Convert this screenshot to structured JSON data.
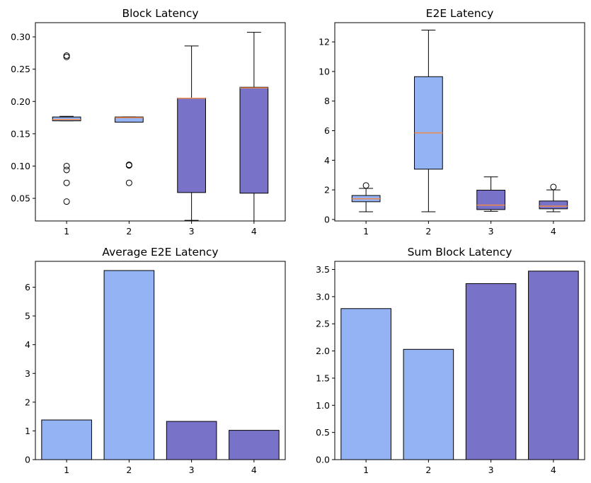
{
  "colors": {
    "light": "#94b3f4",
    "dark": "#7872c9",
    "median": "#f0894a",
    "edge": "#000000"
  },
  "chart_data": [
    {
      "type": "box",
      "title": "Block Latency",
      "categories": [
        "1",
        "2",
        "3",
        "4"
      ],
      "ylim": [
        0.015,
        0.322
      ],
      "yticks": [
        0.05,
        0.1,
        0.15,
        0.2,
        0.25,
        0.3
      ],
      "ytick_labels": [
        "0.05",
        "0.10",
        "0.15",
        "0.20",
        "0.25",
        "0.30"
      ],
      "boxes": [
        {
          "whislo": 0.17,
          "q1": 0.17,
          "med": 0.172,
          "q3": 0.176,
          "whishi": 0.177,
          "fliers": [
            0.271,
            0.269,
            0.1,
            0.094,
            0.074,
            0.045
          ],
          "color": "light"
        },
        {
          "whislo": 0.168,
          "q1": 0.168,
          "med": 0.175,
          "q3": 0.176,
          "whishi": 0.176,
          "fliers": [
            0.102,
            0.101,
            0.074
          ],
          "color": "light"
        },
        {
          "whislo": 0.016,
          "q1": 0.059,
          "med": 0.205,
          "q3": 0.205,
          "whishi": 0.286,
          "fliers": [],
          "color": "dark"
        },
        {
          "whislo": 0.015,
          "q1": 0.058,
          "med": 0.221,
          "q3": 0.222,
          "whishi": 0.307,
          "fliers": [],
          "color": "dark"
        }
      ]
    },
    {
      "type": "box",
      "title": "E2E Latency",
      "categories": [
        "1",
        "2",
        "3",
        "4"
      ],
      "ylim": [
        -0.1,
        13.3
      ],
      "yticks": [
        0,
        2,
        4,
        6,
        8,
        10,
        12
      ],
      "ytick_labels": [
        "0",
        "2",
        "4",
        "6",
        "8",
        "10",
        "12"
      ],
      "boxes": [
        {
          "whislo": 0.52,
          "q1": 1.2,
          "med": 1.4,
          "q3": 1.62,
          "whishi": 2.1,
          "fliers": [
            2.3
          ],
          "color": "light"
        },
        {
          "whislo": 0.52,
          "q1": 3.4,
          "med": 5.85,
          "q3": 9.65,
          "whishi": 12.8,
          "fliers": [],
          "color": "light"
        },
        {
          "whislo": 0.55,
          "q1": 0.67,
          "med": 0.97,
          "q3": 1.98,
          "whishi": 2.88,
          "fliers": [],
          "color": "dark"
        },
        {
          "whislo": 0.52,
          "q1": 0.72,
          "med": 0.9,
          "q3": 1.25,
          "whishi": 2.0,
          "fliers": [
            2.2
          ],
          "color": "dark"
        }
      ]
    },
    {
      "type": "bar",
      "title": "Average E2E Latency",
      "categories": [
        "1",
        "2",
        "3",
        "4"
      ],
      "values": [
        1.38,
        6.58,
        1.33,
        1.02
      ],
      "colors": [
        "light",
        "light",
        "dark",
        "dark"
      ],
      "ylim": [
        0,
        6.9
      ],
      "yticks": [
        0,
        1,
        2,
        3,
        4,
        5,
        6
      ],
      "ytick_labels": [
        "0",
        "1",
        "2",
        "3",
        "4",
        "5",
        "6"
      ]
    },
    {
      "type": "bar",
      "title": "Sum Block Latency",
      "categories": [
        "1",
        "2",
        "3",
        "4"
      ],
      "values": [
        2.78,
        2.03,
        3.24,
        3.47
      ],
      "colors": [
        "light",
        "light",
        "dark",
        "dark"
      ],
      "ylim": [
        0,
        3.65
      ],
      "yticks": [
        0.0,
        0.5,
        1.0,
        1.5,
        2.0,
        2.5,
        3.0,
        3.5
      ],
      "ytick_labels": [
        "0.0",
        "0.5",
        "1.0",
        "1.5",
        "2.0",
        "2.5",
        "3.0",
        "3.5"
      ]
    }
  ]
}
